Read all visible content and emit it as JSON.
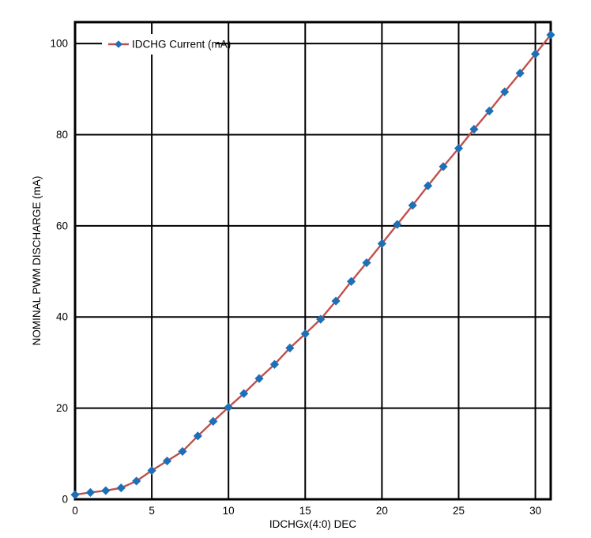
{
  "chart_data": {
    "type": "line",
    "title": "",
    "xlabel": "IDCHGx(4:0) DEC",
    "ylabel": "NOMINAL PWM DISCHARGE (mA)",
    "legend_label": "IDCHG Current (mA)",
    "legend_position": "inside-top-left",
    "x": [
      0,
      1,
      2,
      3,
      4,
      5,
      6,
      7,
      8,
      9,
      10,
      11,
      12,
      13,
      14,
      15,
      16,
      17,
      18,
      19,
      20,
      21,
      22,
      23,
      24,
      25,
      26,
      27,
      28,
      29,
      30,
      31
    ],
    "series": [
      {
        "name": "IDCHG Current (mA)",
        "values": [
          1.0,
          1.5,
          1.9,
          2.5,
          4.0,
          6.3,
          8.4,
          10.5,
          13.9,
          17.1,
          20.2,
          23.2,
          26.5,
          29.6,
          33.2,
          36.3,
          39.5,
          43.5,
          47.8,
          51.9,
          56.1,
          60.3,
          64.5,
          68.8,
          73.0,
          77.0,
          81.2,
          85.2,
          89.4,
          93.5,
          97.7,
          101.9
        ],
        "line_color": "#C0504D",
        "marker": "diamond",
        "marker_color": "#1C70B8"
      }
    ],
    "xlim": [
      0,
      31
    ],
    "ylim": [
      0,
      104.7
    ],
    "xticks": [
      0,
      5,
      10,
      15,
      20,
      25,
      30
    ],
    "yticks": [
      0,
      20,
      40,
      60,
      80,
      100
    ],
    "grid": true,
    "grid_color": "#000000",
    "axis_color": "#000000",
    "background_color": "#FFFFFF"
  }
}
